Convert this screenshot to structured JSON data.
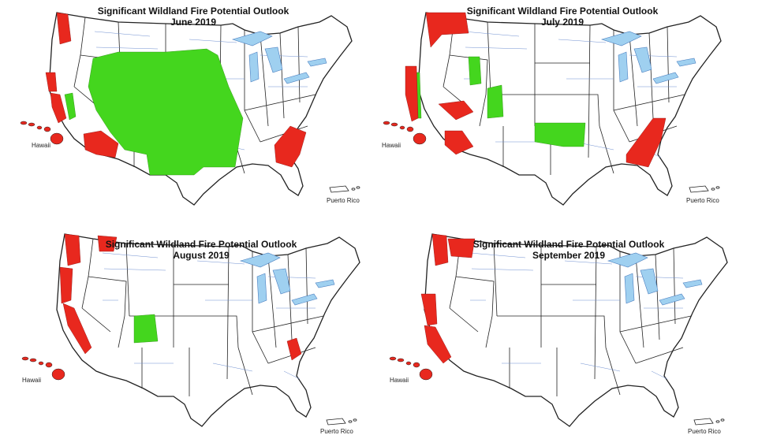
{
  "panels": [
    {
      "title": "Significant Wildland Fire Potential Outlook",
      "month": "June 2019",
      "hawaii": "Hawaii",
      "puerto_rico": "Puerto Rico"
    },
    {
      "title": "Significant Wildland Fire Potential Outlook",
      "month": "July 2019",
      "hawaii": "Hawaii",
      "puerto_rico": "Puerto Rico"
    },
    {
      "title": "Significant Wildland Fire Potential Outlook",
      "month": "August 2019",
      "hawaii": "Hawaii",
      "puerto_rico": "Puerto Rico"
    },
    {
      "title": "Significant Wildland Fire Potential Outlook",
      "month": "September 2019",
      "hawaii": "Hawaii",
      "puerto_rico": "Puerto Rico"
    }
  ],
  "colors": {
    "above_normal": "#e8281e",
    "below_normal": "#44d61e",
    "water": "#9fd0f0",
    "state_border": "#222222",
    "county_border": "#6f8fd0"
  }
}
